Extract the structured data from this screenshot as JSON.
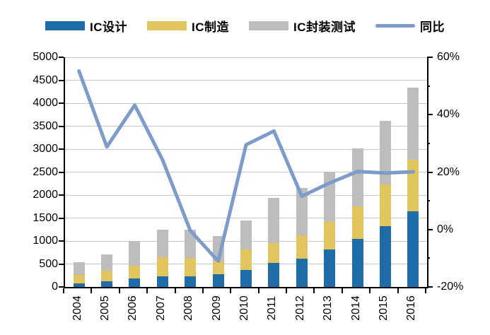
{
  "chart_data": {
    "type": "bar",
    "subtype": "stacked-bar-with-line",
    "categories": [
      "2004",
      "2005",
      "2006",
      "2007",
      "2008",
      "2009",
      "2010",
      "2011",
      "2012",
      "2013",
      "2014",
      "2015",
      "2016"
    ],
    "series": [
      {
        "name": "IC设计",
        "type": "bar",
        "color": "#1E6CA8",
        "values": [
          82,
          124,
          186,
          226,
          235,
          270,
          364,
          520,
          622,
          809,
          1047,
          1325,
          1644
        ]
      },
      {
        "name": "IC制造",
        "type": "bar",
        "color": "#E2C55F",
        "values": [
          180,
          233,
          270,
          425,
          400,
          290,
          447,
          430,
          503,
          601,
          712,
          901,
          1127
        ]
      },
      {
        "name": "IC封装测试",
        "type": "bar",
        "color": "#BDBDBD",
        "values": [
          283,
          345,
          550,
          600,
          612,
          549,
          629,
          984,
          1034,
          1099,
          1256,
          1384,
          1564
        ]
      },
      {
        "name": "同比",
        "type": "line",
        "axis": "right",
        "color": "#7E9CC9",
        "unit": "%",
        "values": [
          55.2,
          28.8,
          43.3,
          24.3,
          -0.4,
          -11.0,
          29.5,
          34.3,
          11.6,
          16.2,
          20.2,
          19.7,
          20.1
        ]
      }
    ],
    "left_axis": {
      "min": 0,
      "max": 5000,
      "step": 500,
      "tick_labels": [
        "0",
        "500",
        "1000",
        "1500",
        "2000",
        "2500",
        "3000",
        "3500",
        "4000",
        "4500",
        "5000"
      ]
    },
    "right_axis": {
      "min": -20,
      "max": 60,
      "step": 20,
      "major_ticks": [
        60,
        40,
        20,
        0,
        -20
      ],
      "minor_ticks": [
        50,
        30,
        10,
        -10
      ],
      "tick_labels": [
        "60%",
        "40%",
        "20%",
        "0%",
        "-20%"
      ]
    },
    "grid": true,
    "gridline_color": "#C6C6C6",
    "axis_color": "#000000",
    "legend_position": "top",
    "title": "",
    "xlabel": "",
    "ylabel": ""
  }
}
